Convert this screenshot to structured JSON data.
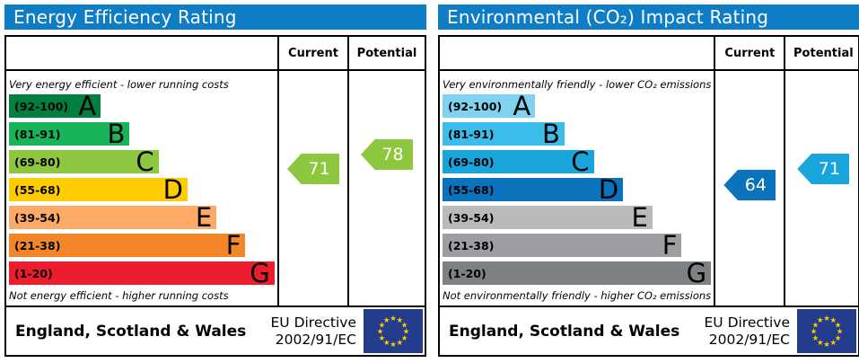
{
  "colors": {
    "title_bar": "#0e7dc6",
    "title_text": "#ffffff",
    "border": "#000000",
    "eu_flag_bg": "#233c8b",
    "eu_star": "#ffcc00"
  },
  "chart_data": [
    {
      "type": "bar",
      "subtype": "epc-energy-efficiency-rating",
      "title": "Energy Efficiency Rating",
      "column_headers": [
        "Current",
        "Potential"
      ],
      "top_caption": "Very energy efficient - lower running costs",
      "bottom_caption": "Not energy efficient - higher running costs",
      "legend_position": "none",
      "bands": [
        {
          "label": "A",
          "range_text": "(92-100)",
          "range": [
            92,
            100
          ],
          "color": "#007f3e"
        },
        {
          "label": "B",
          "range_text": "(81-91)",
          "range": [
            81,
            91
          ],
          "color": "#19b459"
        },
        {
          "label": "C",
          "range_text": "(69-80)",
          "range": [
            69,
            80
          ],
          "color": "#8dc63f"
        },
        {
          "label": "D",
          "range_text": "(55-68)",
          "range": [
            55,
            68
          ],
          "color": "#ffcc00"
        },
        {
          "label": "E",
          "range_text": "(39-54)",
          "range": [
            39,
            54
          ],
          "color": "#fcaa65"
        },
        {
          "label": "F",
          "range_text": "(21-38)",
          "range": [
            21,
            38
          ],
          "color": "#f4862a"
        },
        {
          "label": "G",
          "range_text": "(1-20)",
          "range": [
            1,
            20
          ],
          "color": "#ec1c2c"
        }
      ],
      "current": {
        "value": 71,
        "band": "C",
        "color": "#8dc63f"
      },
      "potential": {
        "value": 78,
        "band": "C",
        "color": "#8dc63f"
      },
      "footer": {
        "region": "England, Scotland & Wales",
        "directive_line1": "EU Directive",
        "directive_line2": "2002/91/EC"
      }
    },
    {
      "type": "bar",
      "subtype": "epc-environmental-co2-impact-rating",
      "title": "Environmental (CO₂) Impact Rating",
      "column_headers": [
        "Current",
        "Potential"
      ],
      "top_caption": "Very environmentally friendly - lower CO₂ emissions",
      "bottom_caption": "Not environmentally friendly - higher CO₂ emissions",
      "legend_position": "none",
      "bands": [
        {
          "label": "A",
          "range_text": "(92-100)",
          "range": [
            92,
            100
          ],
          "color": "#7fd3f1"
        },
        {
          "label": "B",
          "range_text": "(81-91)",
          "range": [
            81,
            91
          ],
          "color": "#3cbde9"
        },
        {
          "label": "C",
          "range_text": "(69-80)",
          "range": [
            69,
            80
          ],
          "color": "#18a5dc"
        },
        {
          "label": "D",
          "range_text": "(55-68)",
          "range": [
            55,
            68
          ],
          "color": "#0b72bc"
        },
        {
          "label": "E",
          "range_text": "(39-54)",
          "range": [
            39,
            54
          ],
          "color": "#b8babc"
        },
        {
          "label": "F",
          "range_text": "(21-38)",
          "range": [
            21,
            38
          ],
          "color": "#9c9ea1"
        },
        {
          "label": "G",
          "range_text": "(1-20)",
          "range": [
            1,
            20
          ],
          "color": "#7e8184"
        }
      ],
      "current": {
        "value": 64,
        "band": "D",
        "color": "#0b72bc"
      },
      "potential": {
        "value": 71,
        "band": "C",
        "color": "#18a5dc"
      },
      "footer": {
        "region": "England, Scotland & Wales",
        "directive_line1": "EU Directive",
        "directive_line2": "2002/91/EC"
      }
    }
  ]
}
